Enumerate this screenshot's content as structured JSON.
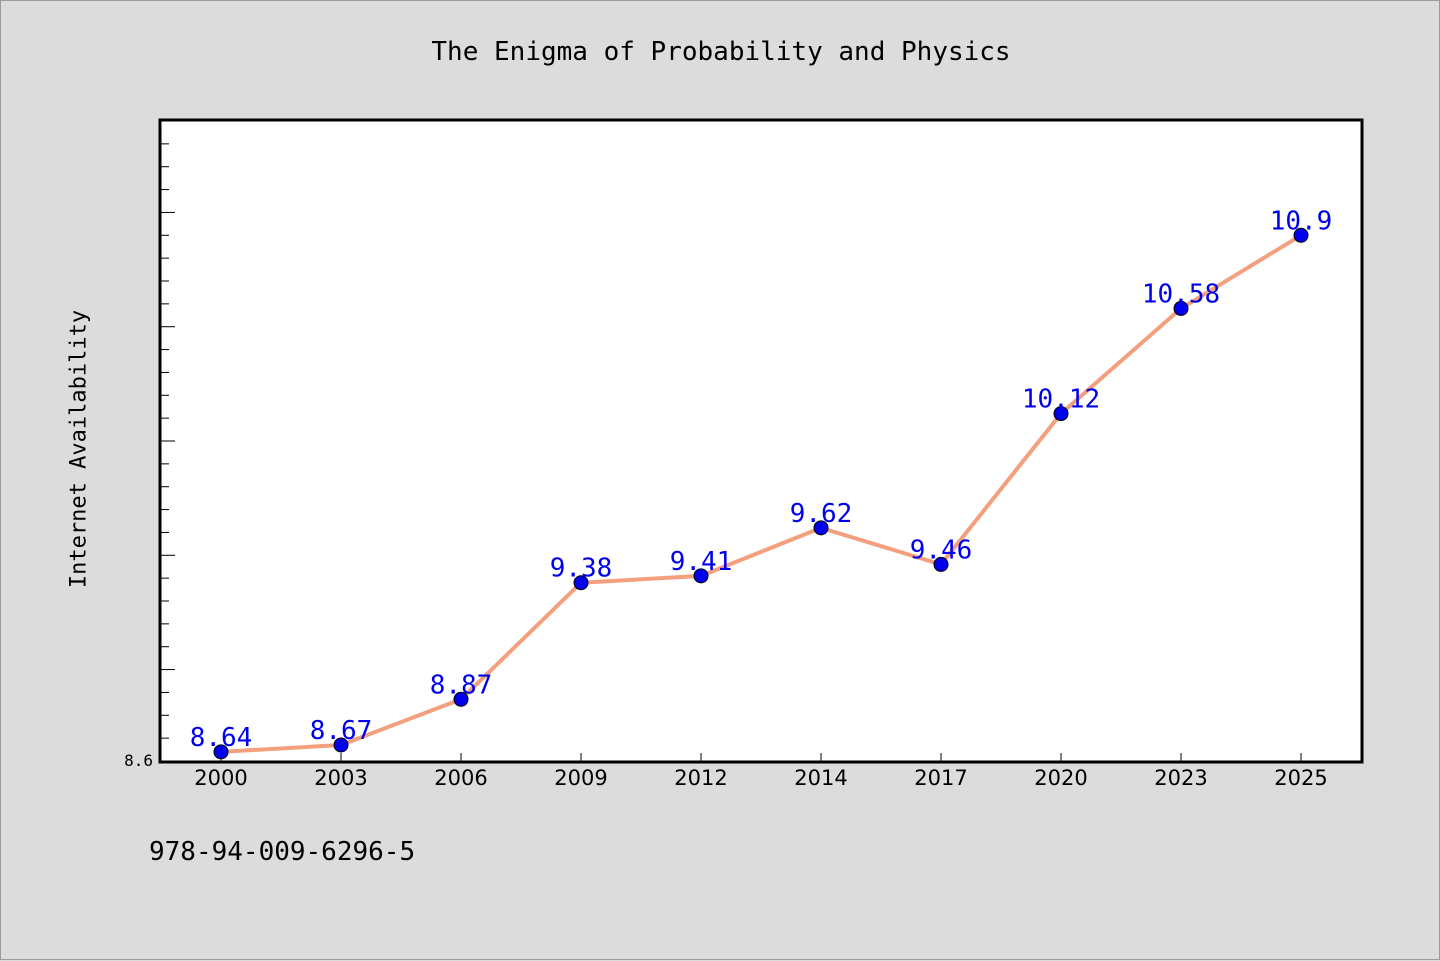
{
  "chart_data": {
    "type": "line",
    "title": "The Enigma of Probability and Physics",
    "xlabel": "",
    "ylabel": "Internet Availability",
    "categories": [
      "2000",
      "2003",
      "2006",
      "2009",
      "2012",
      "2014",
      "2017",
      "2020",
      "2023",
      "2025"
    ],
    "series": [
      {
        "values": [
          8.64,
          8.67,
          8.87,
          9.38,
          9.41,
          9.62,
          9.46,
          10.12,
          10.58,
          10.9
        ]
      }
    ],
    "data_labels": [
      "8.64",
      "8.67",
      "8.87",
      "9.38",
      "9.41",
      "9.62",
      "9.46",
      "10.12",
      "10.58",
      "10.9"
    ],
    "y_tick_labels": [
      "8.6"
    ],
    "ylim": [
      8.6,
      11.4
    ],
    "grid": false,
    "colors": {
      "line": "#f4a07f",
      "marker": "#0000ee",
      "label": "#0000ee"
    }
  },
  "footer": {
    "isbn": "978-94-009-6296-5"
  }
}
